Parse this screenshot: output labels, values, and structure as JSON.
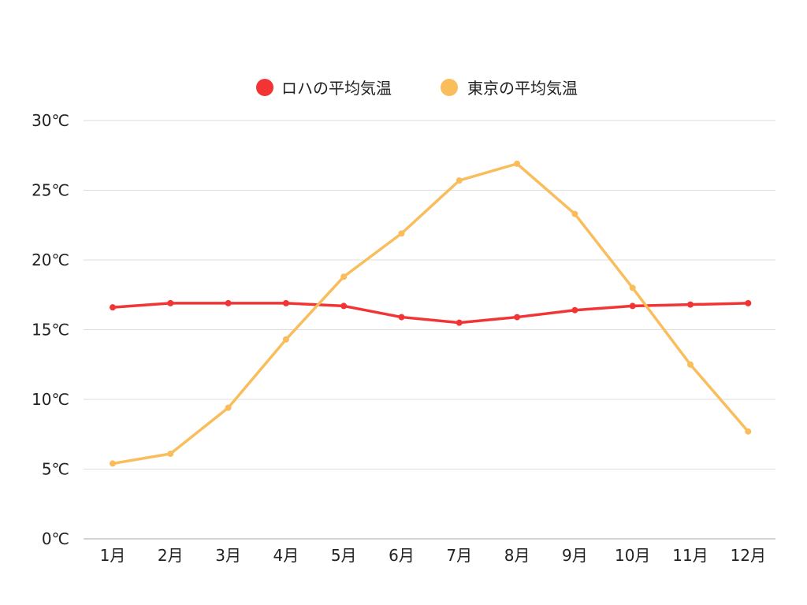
{
  "chart_data": {
    "type": "line",
    "title": "",
    "xlabel": "",
    "ylabel": "",
    "categories": [
      "1月",
      "2月",
      "3月",
      "4月",
      "5月",
      "6月",
      "7月",
      "8月",
      "9月",
      "10月",
      "11月",
      "12月"
    ],
    "ylim": [
      0,
      30
    ],
    "yticks": [
      0,
      5,
      10,
      15,
      20,
      25,
      30
    ],
    "ytick_labels": [
      "0℃",
      "5℃",
      "10℃",
      "15℃",
      "20℃",
      "25℃",
      "30℃"
    ],
    "grid": true,
    "legend_position": "top-center",
    "series": [
      {
        "name": "ロハの平均気温",
        "color": "#f23434",
        "values": [
          16.6,
          16.9,
          16.9,
          16.9,
          16.7,
          15.9,
          15.5,
          15.9,
          16.4,
          16.7,
          16.8,
          16.9
        ]
      },
      {
        "name": "東京の平均気温",
        "color": "#f9bd5b",
        "values": [
          5.4,
          6.1,
          9.4,
          14.3,
          18.8,
          21.9,
          25.7,
          26.9,
          23.3,
          18.0,
          12.5,
          7.7
        ]
      }
    ]
  }
}
